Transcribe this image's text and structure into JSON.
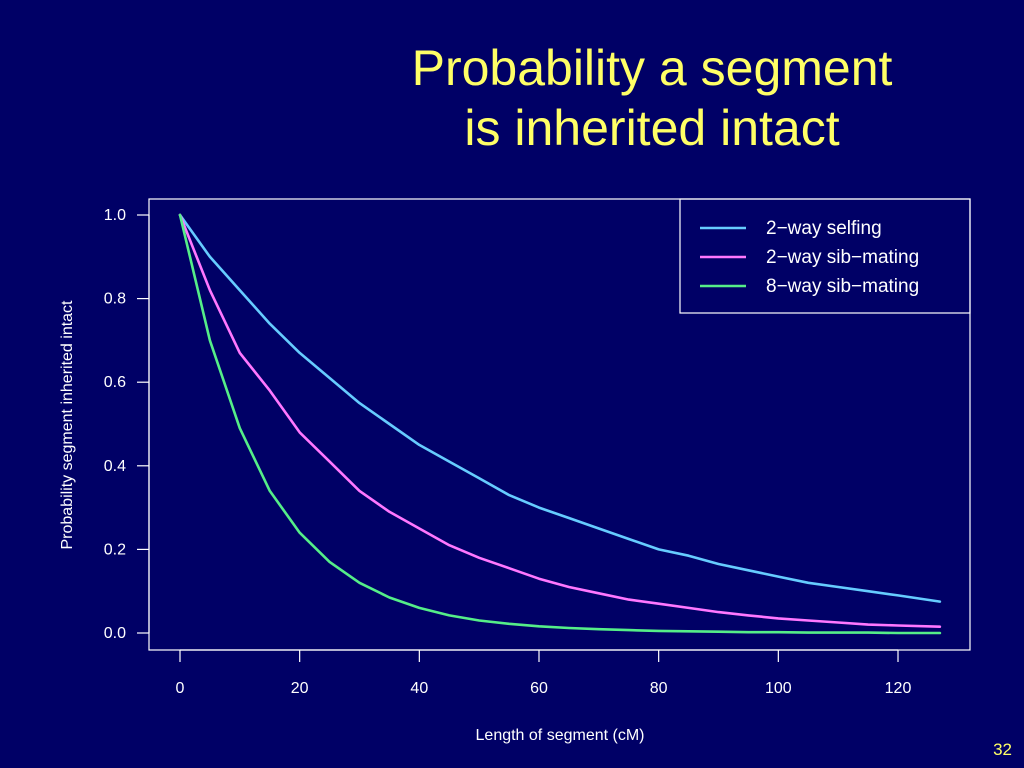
{
  "slide": {
    "title_line1": "Probability a segment",
    "title_line2": "is inherited intact",
    "slide_number": "32"
  },
  "colors": {
    "background": "#000066",
    "title": "#ffff66",
    "axis": "#ffffff"
  },
  "chart_data": {
    "type": "line",
    "title": "",
    "xlabel": "Length of segment (cM)",
    "ylabel": "Probability segment inherited intact",
    "xlim": [
      0,
      127
    ],
    "ylim": [
      0,
      1.0
    ],
    "x_ticks": [
      0,
      20,
      40,
      60,
      80,
      100,
      120
    ],
    "y_ticks": [
      "0.0",
      "0.2",
      "0.4",
      "0.6",
      "0.8",
      "1.0"
    ],
    "legend_position": "top-right",
    "series": [
      {
        "name": "2−way selfing",
        "color": "#66ccff",
        "x": [
          0,
          5,
          10,
          15,
          20,
          25,
          30,
          35,
          40,
          45,
          50,
          55,
          60,
          65,
          70,
          75,
          80,
          85,
          90,
          95,
          100,
          105,
          110,
          115,
          120,
          127
        ],
        "y": [
          1.0,
          0.9,
          0.82,
          0.74,
          0.67,
          0.61,
          0.55,
          0.5,
          0.45,
          0.41,
          0.37,
          0.33,
          0.3,
          0.275,
          0.25,
          0.225,
          0.2,
          0.185,
          0.165,
          0.15,
          0.135,
          0.12,
          0.11,
          0.1,
          0.09,
          0.075
        ]
      },
      {
        "name": "2−way sib−mating",
        "color": "#ff77ff",
        "x": [
          0,
          5,
          10,
          15,
          20,
          25,
          30,
          35,
          40,
          45,
          50,
          55,
          60,
          65,
          70,
          75,
          80,
          85,
          90,
          95,
          100,
          105,
          110,
          115,
          120,
          127
        ],
        "y": [
          1.0,
          0.82,
          0.67,
          0.58,
          0.48,
          0.41,
          0.34,
          0.29,
          0.25,
          0.21,
          0.18,
          0.155,
          0.13,
          0.11,
          0.095,
          0.08,
          0.07,
          0.06,
          0.05,
          0.042,
          0.035,
          0.03,
          0.025,
          0.02,
          0.018,
          0.015
        ]
      },
      {
        "name": "8−way sib−mating",
        "color": "#55ee88",
        "x": [
          0,
          5,
          10,
          15,
          20,
          25,
          30,
          35,
          40,
          45,
          50,
          55,
          60,
          65,
          70,
          75,
          80,
          85,
          90,
          95,
          100,
          105,
          110,
          115,
          120,
          127
        ],
        "y": [
          1.0,
          0.7,
          0.49,
          0.34,
          0.24,
          0.17,
          0.12,
          0.085,
          0.06,
          0.042,
          0.03,
          0.022,
          0.016,
          0.012,
          0.009,
          0.007,
          0.005,
          0.004,
          0.003,
          0.002,
          0.002,
          0.001,
          0.001,
          0.001,
          0.0,
          0.0
        ]
      }
    ]
  }
}
